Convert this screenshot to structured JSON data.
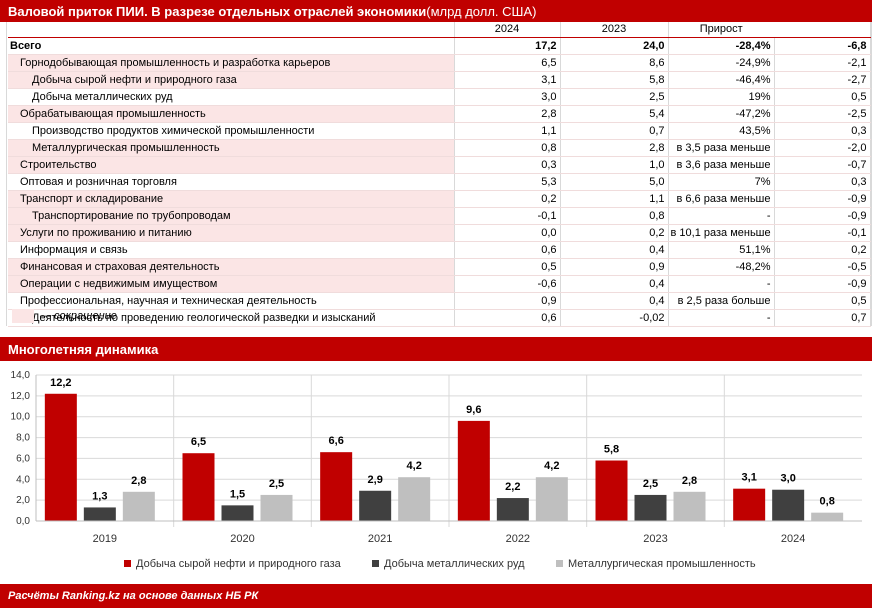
{
  "header": {
    "title_bold": "Валовой приток ПИИ. В разрезе отдельных отраслей экономики",
    "title_unit": " (млрд долл. США)"
  },
  "table": {
    "columns": [
      "",
      "2024",
      "2023",
      "Прирост",
      ""
    ],
    "rows": [
      {
        "name": "Всего",
        "v2024": "17,2",
        "v2023": "24,0",
        "pct": "-28,4%",
        "abs": "-6,8",
        "level": 0,
        "bold": true,
        "pink": false
      },
      {
        "name": "Горнодобывающая промышленность и разработка карьеров",
        "v2024": "6,5",
        "v2023": "8,6",
        "pct": "-24,9%",
        "abs": "-2,1",
        "level": 1,
        "bold": false,
        "pink": true
      },
      {
        "name": "Добыча сырой нефти и природного газа",
        "v2024": "3,1",
        "v2023": "5,8",
        "pct": "-46,4%",
        "abs": "-2,7",
        "level": 2,
        "bold": false,
        "pink": true
      },
      {
        "name": "Добыча металлических руд",
        "v2024": "3,0",
        "v2023": "2,5",
        "pct": "19%",
        "abs": "0,5",
        "level": 2,
        "bold": false,
        "pink": false
      },
      {
        "name": "Обрабатывающая промышленность",
        "v2024": "2,8",
        "v2023": "5,4",
        "pct": "-47,2%",
        "abs": "-2,5",
        "level": 1,
        "bold": false,
        "pink": true
      },
      {
        "name": "Производство продуктов химической промышленности",
        "v2024": "1,1",
        "v2023": "0,7",
        "pct": "43,5%",
        "abs": "0,3",
        "level": 2,
        "bold": false,
        "pink": false
      },
      {
        "name": "Металлургическая промышленность",
        "v2024": "0,8",
        "v2023": "2,8",
        "pct": "в 3,5 раза меньше",
        "abs": "-2,0",
        "level": 2,
        "bold": false,
        "pink": true
      },
      {
        "name": "Строительство",
        "v2024": "0,3",
        "v2023": "1,0",
        "pct": "в 3,6 раза меньше",
        "abs": "-0,7",
        "level": 1,
        "bold": false,
        "pink": true
      },
      {
        "name": "Оптовая и розничная торговля",
        "v2024": "5,3",
        "v2023": "5,0",
        "pct": "7%",
        "abs": "0,3",
        "level": 1,
        "bold": false,
        "pink": false
      },
      {
        "name": "Транспорт и складирование",
        "v2024": "0,2",
        "v2023": "1,1",
        "pct": "в 6,6 раза меньше",
        "abs": "-0,9",
        "level": 1,
        "bold": false,
        "pink": true
      },
      {
        "name": "Транспортирование по трубопроводам",
        "v2024": "-0,1",
        "v2023": "0,8",
        "pct": "-",
        "abs": "-0,9",
        "level": 2,
        "bold": false,
        "pink": true
      },
      {
        "name": "Услуги по проживанию и питанию",
        "v2024": "0,0",
        "v2023": "0,2",
        "pct": "в 10,1 раза меньше",
        "abs": "-0,1",
        "level": 1,
        "bold": false,
        "pink": true
      },
      {
        "name": "Информация и связь",
        "v2024": "0,6",
        "v2023": "0,4",
        "pct": "51,1%",
        "abs": "0,2",
        "level": 1,
        "bold": false,
        "pink": false
      },
      {
        "name": "Финансовая и страховая деятельность",
        "v2024": "0,5",
        "v2023": "0,9",
        "pct": "-48,2%",
        "abs": "-0,5",
        "level": 1,
        "bold": false,
        "pink": true
      },
      {
        "name": "Операции с недвижимым имуществом",
        "v2024": "-0,6",
        "v2023": "0,4",
        "pct": "-",
        "abs": "-0,9",
        "level": 1,
        "bold": false,
        "pink": true
      },
      {
        "name": "Профессиональная, научная и техническая деятельность",
        "v2024": "0,9",
        "v2023": "0,4",
        "pct": "в 2,5 раза больше",
        "abs": "0,5",
        "level": 1,
        "bold": false,
        "pink": false
      },
      {
        "name": "Деятельность по проведению геологической разведки и изысканий",
        "v2024": "0,6",
        "v2023": "-0,02",
        "pct": "-",
        "abs": "0,7",
        "level": 2,
        "bold": false,
        "pink": false
      }
    ],
    "note": "— сокращение",
    "pink_color": "#fbe5e5"
  },
  "section2": {
    "title": "Многолетняя динамика"
  },
  "chart_data": {
    "type": "bar",
    "categories": [
      "2019",
      "2020",
      "2021",
      "2022",
      "2023",
      "2024"
    ],
    "series": [
      {
        "name": "Добыча сырой нефти и природного газа",
        "color": "#c00000",
        "values": [
          12.2,
          6.5,
          6.6,
          9.6,
          5.8,
          3.1
        ],
        "labels": [
          "12,2",
          "6,5",
          "6,6",
          "9,6",
          "5,8",
          "3,1"
        ]
      },
      {
        "name": "Добыча металлических руд",
        "color": "#404040",
        "values": [
          1.3,
          1.5,
          2.9,
          2.2,
          2.5,
          3.0
        ],
        "labels": [
          "1,3",
          "1,5",
          "2,9",
          "2,2",
          "2,5",
          "3,0"
        ]
      },
      {
        "name": "Металлургическая промышленность",
        "color": "#bfbfbf",
        "values": [
          2.8,
          2.5,
          4.2,
          4.2,
          2.8,
          0.8
        ],
        "labels": [
          "2,8",
          "2,5",
          "4,2",
          "4,2",
          "2,8",
          "0,8"
        ]
      }
    ],
    "ylim": [
      0,
      14
    ],
    "yticks": [
      "0,0",
      "2,0",
      "4,0",
      "6,0",
      "8,0",
      "10,0",
      "12,0",
      "14,0"
    ],
    "grid": true,
    "legend": "bottom"
  },
  "footer": {
    "source": "Расчёты Ranking.kz на основе данных НБ РК"
  }
}
